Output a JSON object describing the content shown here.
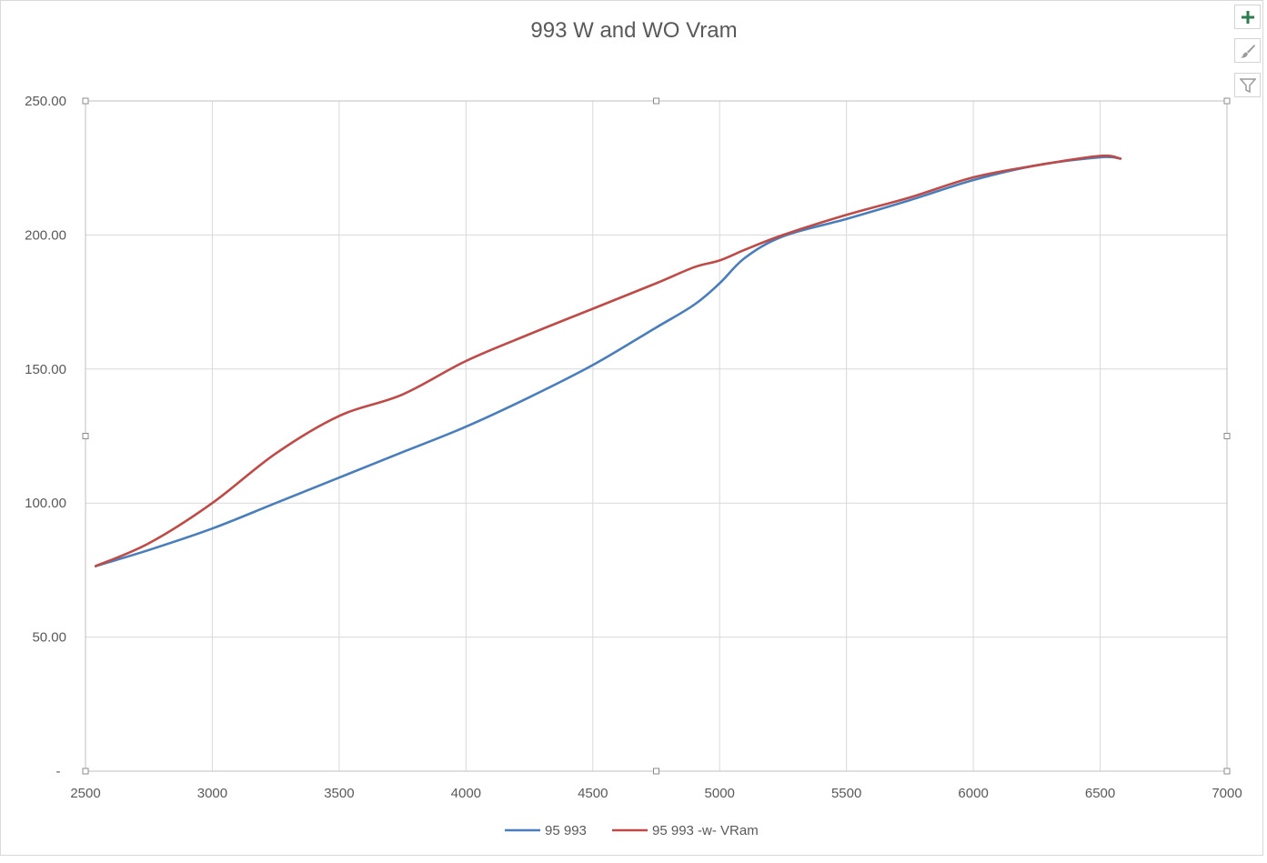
{
  "chart_data": {
    "type": "line",
    "title": "993 W and WO Vram",
    "xlim": [
      2500,
      7000
    ],
    "ylim": [
      0,
      250
    ],
    "x_ticks": [
      2500,
      3000,
      3500,
      4000,
      4500,
      5000,
      5500,
      6000,
      6500,
      7000
    ],
    "y_tick_labels": [
      "-",
      "50.00",
      "100.00",
      "150.00",
      "200.00",
      "250.00"
    ],
    "grid": true,
    "legend_position": "bottom",
    "series": [
      {
        "name": "95 993",
        "color": "#4a7ebb",
        "points": [
          [
            2540,
            76.5
          ],
          [
            2750,
            82.5
          ],
          [
            3000,
            90.5
          ],
          [
            3250,
            100
          ],
          [
            3500,
            109.5
          ],
          [
            3750,
            119
          ],
          [
            4000,
            128.5
          ],
          [
            4250,
            139.5
          ],
          [
            4500,
            151.5
          ],
          [
            4750,
            165.5
          ],
          [
            4900,
            174
          ],
          [
            5000,
            182
          ],
          [
            5100,
            191.5
          ],
          [
            5250,
            199.5
          ],
          [
            5500,
            206
          ],
          [
            5750,
            213
          ],
          [
            6000,
            220.5
          ],
          [
            6250,
            226
          ],
          [
            6500,
            229
          ],
          [
            6580,
            228.5
          ]
        ]
      },
      {
        "name": "95 993 -w- VRam",
        "color": "#be4b48",
        "points": [
          [
            2540,
            76.5
          ],
          [
            2750,
            85
          ],
          [
            3000,
            100
          ],
          [
            3250,
            118.5
          ],
          [
            3500,
            132.5
          ],
          [
            3750,
            140.5
          ],
          [
            4000,
            153
          ],
          [
            4250,
            163
          ],
          [
            4500,
            172.5
          ],
          [
            4750,
            182
          ],
          [
            4900,
            188
          ],
          [
            5000,
            190.5
          ],
          [
            5100,
            194.5
          ],
          [
            5250,
            200
          ],
          [
            5500,
            207.5
          ],
          [
            5750,
            214
          ],
          [
            6000,
            221.5
          ],
          [
            6250,
            226
          ],
          [
            6500,
            229.5
          ],
          [
            6580,
            228.5
          ]
        ]
      }
    ]
  },
  "toolbar": {
    "buttons": [
      {
        "name": "chart-elements-button",
        "icon": "plus-icon"
      },
      {
        "name": "chart-styles-button",
        "icon": "brush-icon"
      },
      {
        "name": "chart-filters-button",
        "icon": "filter-icon"
      }
    ]
  }
}
